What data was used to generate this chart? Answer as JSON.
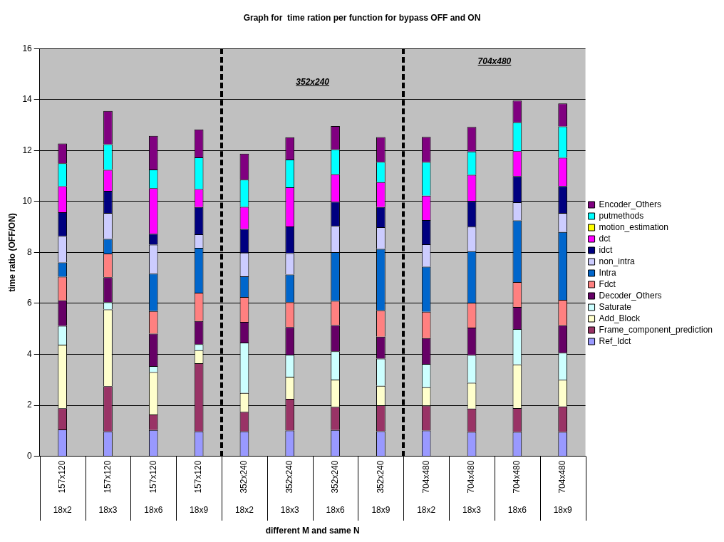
{
  "chart_data": {
    "type": "bar",
    "stacked": true,
    "title": "Graph for  time ration per function for bypass OFF and ON",
    "xlabel": "different M and same N",
    "ylabel": "time ratio (OFF/ON)",
    "categories": [
      "157x120",
      "157x120",
      "157x120",
      "157x120",
      "352x240",
      "352x240",
      "352x240",
      "352x240",
      "704x480",
      "704x480",
      "704x480",
      "704x480"
    ],
    "annotations": [
      "18x2",
      "18x3",
      "18x6",
      "18x9",
      "18x2",
      "18x3",
      "18x6",
      "18x9",
      "18x2",
      "18x3",
      "18x6",
      "18x9",
      "352x240",
      "704x480"
    ],
    "ylim": [
      0,
      16
    ],
    "yticks": [
      0,
      2,
      4,
      6,
      8,
      10,
      12,
      14,
      16
    ],
    "grid": "y",
    "legend": "right",
    "series": [
      {
        "name": "Ref_Idct",
        "color": "#9999ff",
        "values": [
          1.05,
          0.97,
          1.03,
          0.97,
          0.97,
          1.01,
          1.03,
          0.98,
          1.01,
          0.95,
          0.95,
          0.95
        ]
      },
      {
        "name": "Frame_component_prediction",
        "color": "#993366",
        "values": [
          0.83,
          1.78,
          0.61,
          2.68,
          0.77,
          1.24,
          0.91,
          1.02,
          0.98,
          0.92,
          0.94,
          1.0
        ]
      },
      {
        "name": "Add_Block",
        "color": "#ffffcc",
        "values": [
          2.5,
          3.01,
          1.66,
          0.51,
          0.74,
          0.87,
          1.07,
          0.76,
          0.72,
          1.01,
          1.71,
          1.05
        ]
      },
      {
        "name": "Saturate",
        "color": "#ccffff",
        "values": [
          0.74,
          0.29,
          0.24,
          0.24,
          1.98,
          0.87,
          1.11,
          1.07,
          0.91,
          1.09,
          1.39,
          1.06
        ]
      },
      {
        "name": "Decoder_Others",
        "color": "#660066",
        "values": [
          1.0,
          0.98,
          1.27,
          0.91,
          0.81,
          1.08,
          1.03,
          0.86,
          1.02,
          1.08,
          0.87,
          1.08
        ]
      },
      {
        "name": "Fdct",
        "color": "#ff8080",
        "values": [
          0.93,
          0.93,
          0.89,
          1.11,
          0.98,
          0.98,
          0.95,
          1.04,
          1.03,
          0.97,
          0.98,
          1.0
        ]
      },
      {
        "name": "Intra",
        "color": "#0066cc",
        "values": [
          0.56,
          0.57,
          1.47,
          1.76,
          0.81,
          1.08,
          1.91,
          2.41,
          1.77,
          2.03,
          2.42,
          2.66
        ]
      },
      {
        "name": "non_intra",
        "color": "#ccccff",
        "values": [
          1.03,
          1.02,
          1.14,
          0.53,
          0.93,
          0.84,
          1.03,
          0.85,
          0.88,
          0.96,
          0.71,
          0.75
        ]
      },
      {
        "name": "idct",
        "color": "#000080",
        "values": [
          0.94,
          0.87,
          0.42,
          1.07,
          0.93,
          1.05,
          0.95,
          0.79,
          0.95,
          1.01,
          1.03,
          1.06
        ]
      },
      {
        "name": "dct",
        "color": "#ff00ff",
        "values": [
          1.02,
          0.82,
          1.79,
          0.71,
          0.87,
          1.54,
          1.08,
          0.98,
          0.96,
          1.03,
          0.98,
          1.11
        ]
      },
      {
        "name": "motion_estimation",
        "color": "#ffff00",
        "values": [
          0,
          0,
          0,
          0,
          0,
          0,
          0,
          0,
          0,
          0,
          0,
          0
        ]
      },
      {
        "name": "putmethods",
        "color": "#00ffff",
        "values": [
          0.9,
          1.01,
          0.74,
          1.24,
          1.07,
          1.09,
          0.98,
          0.8,
          1.32,
          0.91,
          1.13,
          1.23
        ]
      },
      {
        "name": "Encoder_Others",
        "color": "#800080",
        "values": [
          0.78,
          1.31,
          1.32,
          1.1,
          1.02,
          0.87,
          0.91,
          0.97,
          0.99,
          0.97,
          0.85,
          0.9
        ]
      }
    ]
  }
}
